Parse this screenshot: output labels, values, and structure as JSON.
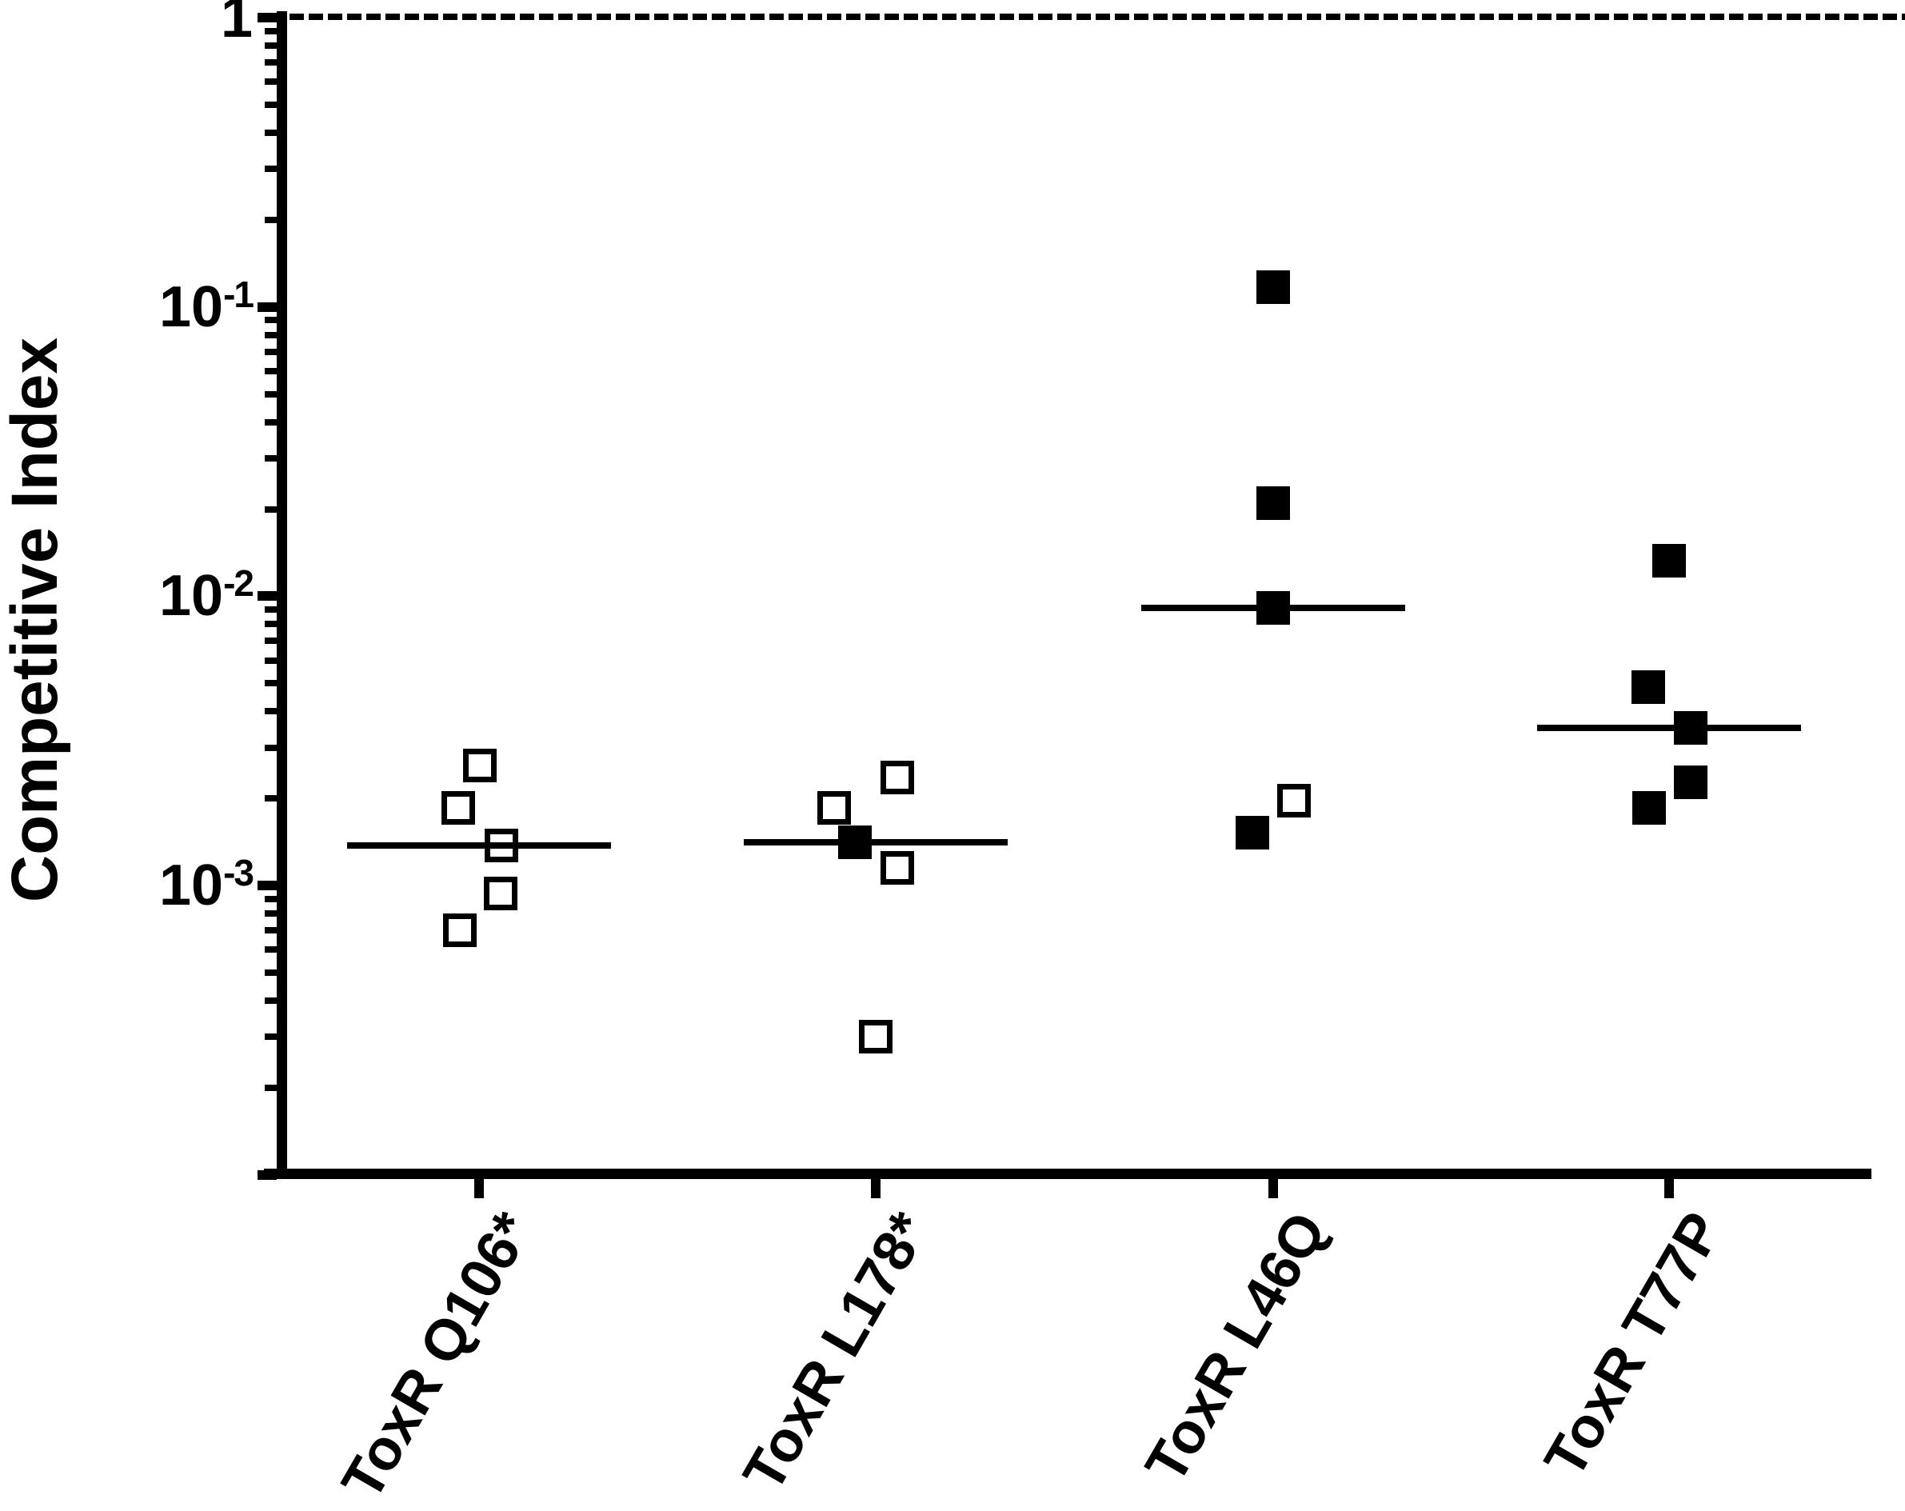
{
  "figure": {
    "background_color": "#ffffff",
    "ink_color": "#000000"
  },
  "y_axis": {
    "title": "Competitive Index",
    "scale": "log",
    "top_value": 1,
    "bottom_value": 0.0001,
    "major_tick_labels": [
      {
        "text": "1",
        "value": 1
      },
      {
        "base": "10",
        "sup": "-1",
        "value": 0.1
      },
      {
        "base": "10",
        "sup": "-2",
        "value": 0.01
      },
      {
        "base": "10",
        "sup": "-3",
        "value": 0.001
      }
    ],
    "major_tick_values": [
      1,
      0.1,
      0.01,
      0.001,
      0.0001
    ]
  },
  "reference_line": {
    "value": 1,
    "style": "dashed"
  },
  "chart_data": {
    "type": "scatter",
    "title": "",
    "xlabel": "",
    "ylabel": "Competitive Index",
    "yscale": "log",
    "ylim": [
      0.0001,
      1
    ],
    "grid": false,
    "legend": "none",
    "reference_line_y": 1,
    "categories": [
      "ToxR Q106*",
      "ToxR L178*",
      "ToxR L46Q",
      "ToxR T77P"
    ],
    "groups": [
      {
        "label": "ToxR Q106*",
        "median": 0.00138,
        "points": [
          {
            "ci": 0.0026,
            "marker": "open",
            "dx": 1
          },
          {
            "ci": 0.00185,
            "marker": "open",
            "dx": -26
          },
          {
            "ci": 0.00138,
            "marker": "open",
            "dx": 28
          },
          {
            "ci": 0.00094,
            "marker": "open",
            "dx": 27
          },
          {
            "ci": 0.0007,
            "marker": "open",
            "dx": -24
          }
        ]
      },
      {
        "label": "ToxR L178*",
        "median": 0.00141,
        "points": [
          {
            "ci": 0.00236,
            "marker": "open",
            "dx": 27
          },
          {
            "ci": 0.00185,
            "marker": "open",
            "dx": -52
          },
          {
            "ci": 0.00141,
            "marker": "filled",
            "dx": -26
          },
          {
            "ci": 0.00115,
            "marker": "open",
            "dx": 27
          },
          {
            "ci": 0.0003,
            "marker": "open",
            "dx": 0
          }
        ]
      },
      {
        "label": "ToxR L46Q",
        "median": 0.0091,
        "points": [
          {
            "ci": 0.117,
            "marker": "filled",
            "dx": 0
          },
          {
            "ci": 0.021,
            "marker": "filled",
            "dx": 0
          },
          {
            "ci": 0.0091,
            "marker": "filled",
            "dx": 0
          },
          {
            "ci": 0.00197,
            "marker": "open",
            "dx": 26
          },
          {
            "ci": 0.00152,
            "marker": "filled",
            "dx": -26
          }
        ]
      },
      {
        "label": "ToxR T77P",
        "median": 0.0035,
        "points": [
          {
            "ci": 0.0133,
            "marker": "filled",
            "dx": 0
          },
          {
            "ci": 0.00484,
            "marker": "filled",
            "dx": -26
          },
          {
            "ci": 0.0035,
            "marker": "filled",
            "dx": 27
          },
          {
            "ci": 0.00227,
            "marker": "filled",
            "dx": 27
          },
          {
            "ci": 0.00185,
            "marker": "filled",
            "dx": -25
          }
        ]
      }
    ]
  }
}
